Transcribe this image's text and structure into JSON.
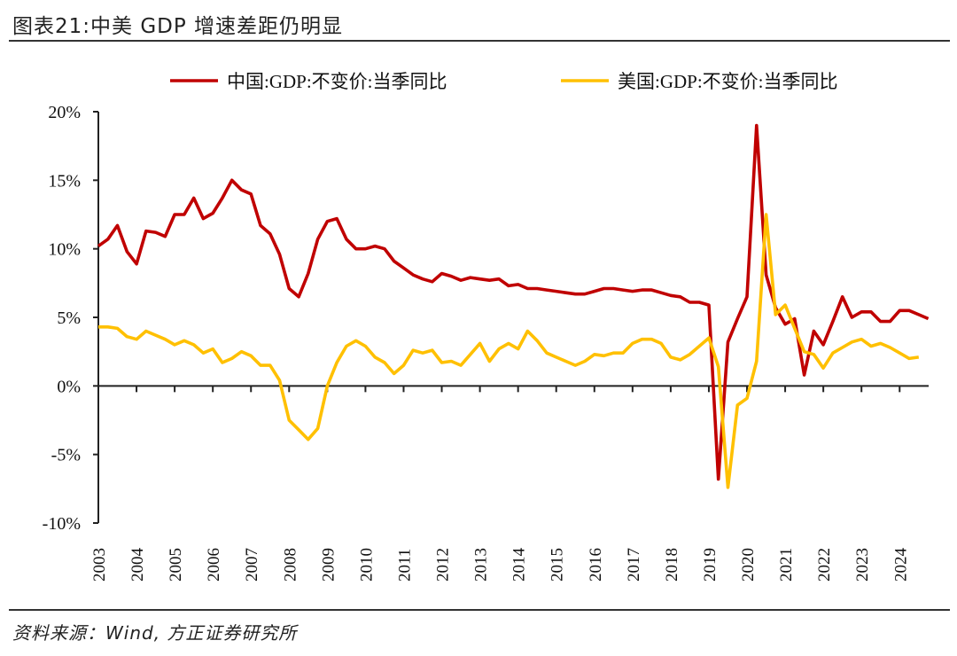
{
  "header": {
    "title": "图表21:中美 GDP 增速差距仍明显"
  },
  "footer": {
    "source": "资料来源：Wind, 方正证券研究所"
  },
  "chart_data": {
    "type": "line",
    "title": "",
    "xlabel": "",
    "ylabel": "",
    "frequency": "quarterly",
    "x_tick_labels": [
      "2003",
      "2004",
      "2005",
      "2006",
      "2007",
      "2008",
      "2009",
      "2010",
      "2011",
      "2012",
      "2013",
      "2014",
      "2015",
      "2016",
      "2017",
      "2018",
      "2019",
      "2020",
      "2021",
      "2022",
      "2023",
      "2024"
    ],
    "y_tick_labels": [
      "20%",
      "15%",
      "10%",
      "5%",
      "0%",
      "-5%",
      "-10%"
    ],
    "y_ticks": [
      20,
      15,
      10,
      5,
      0,
      -5,
      -10
    ],
    "ylim": [
      -10,
      20
    ],
    "grid": false,
    "legend": "top",
    "series": [
      {
        "name": "中国:GDP:不变价:当季同比",
        "color": "#C00000",
        "values": [
          10.2,
          10.7,
          11.7,
          9.8,
          8.9,
          11.3,
          11.2,
          10.9,
          12.5,
          12.5,
          13.7,
          12.2,
          12.6,
          13.7,
          15.0,
          14.3,
          14.0,
          11.7,
          11.1,
          9.6,
          7.1,
          6.5,
          8.2,
          10.7,
          12.0,
          12.2,
          10.7,
          10.0,
          10.0,
          10.2,
          10.0,
          9.1,
          8.6,
          8.1,
          7.8,
          7.6,
          8.2,
          8.0,
          7.7,
          7.9,
          7.8,
          7.7,
          7.8,
          7.3,
          7.4,
          7.1,
          7.1,
          7.0,
          6.9,
          6.8,
          6.7,
          6.7,
          6.9,
          7.1,
          7.1,
          7.0,
          6.9,
          7.0,
          7.0,
          6.8,
          6.6,
          6.5,
          6.1,
          6.1,
          5.9,
          -6.8,
          3.2,
          4.9,
          6.5,
          19.0,
          8.1,
          5.7,
          4.5,
          4.9,
          0.8,
          4.0,
          3.0,
          4.7,
          6.5,
          5.0,
          5.4,
          5.4,
          4.7,
          4.7,
          5.5,
          5.5,
          5.2,
          4.9
        ]
      },
      {
        "name": "美国:GDP:不变价:当季同比",
        "color": "#FFC000",
        "values": [
          4.3,
          4.3,
          4.2,
          3.6,
          3.4,
          4.0,
          3.7,
          3.4,
          3.0,
          3.3,
          3.0,
          2.4,
          2.7,
          1.7,
          2.0,
          2.5,
          2.2,
          1.5,
          1.5,
          0.4,
          -2.5,
          -3.2,
          -3.9,
          -3.1,
          0.0,
          1.7,
          2.9,
          3.3,
          2.9,
          2.1,
          1.7,
          0.9,
          1.5,
          2.6,
          2.4,
          2.6,
          1.7,
          1.8,
          1.5,
          2.3,
          3.1,
          1.8,
          2.7,
          3.1,
          2.7,
          4.0,
          3.3,
          2.4,
          2.1,
          1.8,
          1.5,
          1.8,
          2.3,
          2.2,
          2.4,
          2.4,
          3.1,
          3.4,
          3.4,
          3.1,
          2.1,
          1.9,
          2.3,
          2.9,
          3.5,
          1.4,
          -7.4,
          -1.4,
          -0.9,
          1.8,
          12.5,
          5.2,
          5.9,
          4.2,
          2.5,
          2.3,
          1.3,
          2.4,
          2.8,
          3.2,
          3.4,
          2.9,
          3.1,
          2.8,
          2.4,
          2.0,
          2.1
        ]
      }
    ]
  }
}
